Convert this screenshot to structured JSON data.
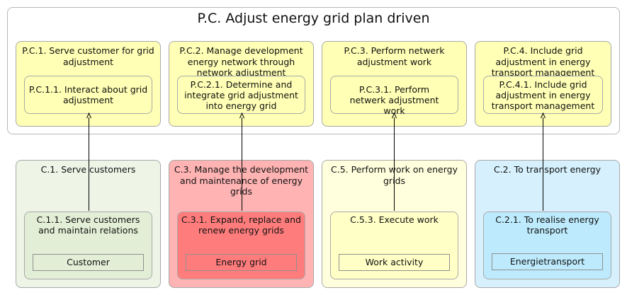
{
  "title": "P.C. Adjust energy grid plan driven",
  "top_groups": [
    {
      "title": "P.C.1. Serve customer for grid adjustment",
      "inner": "P.C.1.1. Interact about grid adjustment"
    },
    {
      "title": "P.C.2. Manage development energy network through network adjustment",
      "inner": "P.C.2.1. Determine and integrate grid adjustment into energy grid"
    },
    {
      "title": "P.C.3. Perform netwerk adjustment work",
      "inner": "P.C.3.1. Perform netwerk adjustment work"
    },
    {
      "title": "P.C.4. Include grid adjustment in energy transport management",
      "inner": "P.C.4.1. Include grid adjustment in energy transport management"
    }
  ],
  "bottom_groups": [
    {
      "title": "C.1. Serve customers",
      "inner": "C.1.1. Serve customers and maintain relations",
      "object": "Customer"
    },
    {
      "title": "C.3. Manage the development and maintenance of energy grids",
      "inner": "C.3.1. Expand, replace and renew energy grids",
      "object": "Energy grid"
    },
    {
      "title": "C.5. Perform work on energy grids",
      "inner": "C.5.3. Execute work",
      "object": "Work activity"
    },
    {
      "title": "C.2. To transport energy",
      "inner": "C.2.1. To realise energy transport",
      "object": "Energietransport"
    }
  ],
  "colors": {
    "top_fill": "#ffffb5",
    "green_fill": "#eef4e6",
    "green_inner": "#e2efd6",
    "red_fill": "#ffb3b3",
    "red_inner": "#ff7c7c",
    "yellow_fill": "#ffffdd",
    "yellow_inner": "#ffffc6",
    "blue_fill": "#d6f1fd",
    "blue_inner": "#bdebfd"
  }
}
